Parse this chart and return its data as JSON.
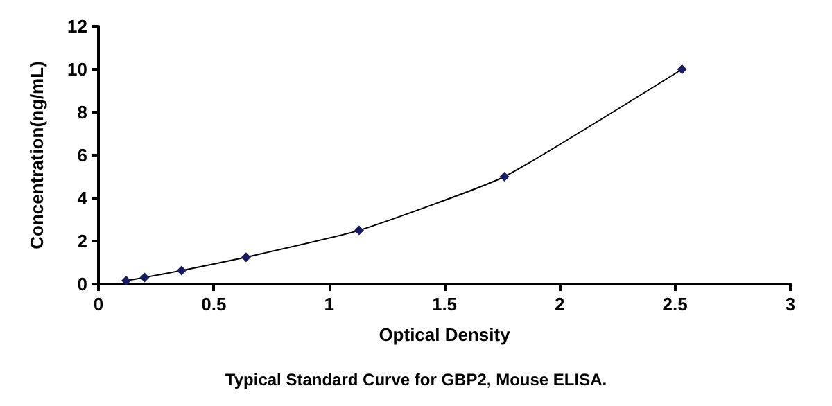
{
  "chart_data": {
    "type": "line",
    "annotations": [
      "Typical Standard Curve for GBP2, Mouse ELISA."
    ],
    "xlabel": "Optical Density",
    "ylabel": "Concentration(ng/mL)",
    "x": [
      0.12,
      0.2,
      0.36,
      0.64,
      1.13,
      1.76,
      2.53
    ],
    "series": [
      {
        "color": "#1a1a5e",
        "values": [
          0.16,
          0.31,
          0.63,
          1.25,
          2.5,
          5,
          10
        ]
      }
    ],
    "xlim": [
      0,
      3
    ],
    "xticks": [
      0,
      0.5,
      1,
      1.5,
      2,
      2.5,
      3
    ],
    "ylim": [
      0,
      12
    ],
    "yticks": [
      0,
      2,
      4,
      6,
      8,
      10,
      12
    ],
    "grid": false,
    "marker": "diamond",
    "line_style": "solid"
  }
}
